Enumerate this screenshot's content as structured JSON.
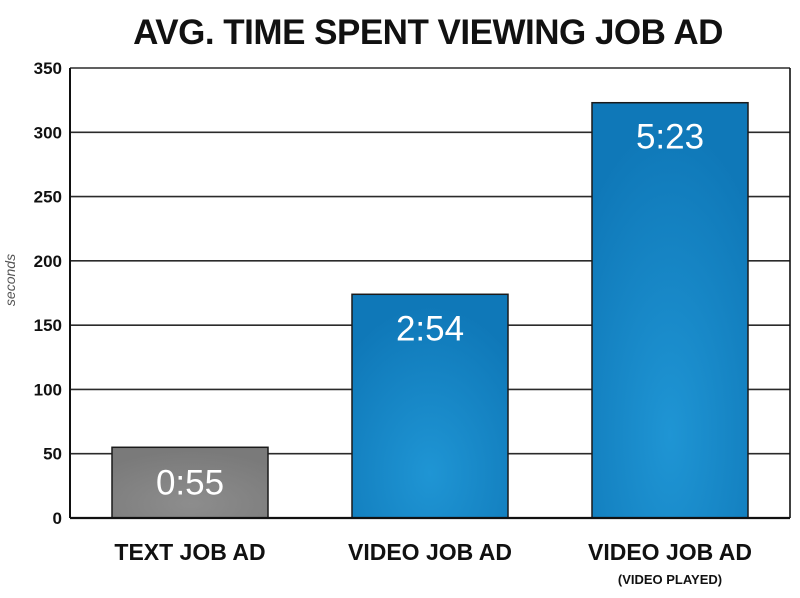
{
  "chart_data": {
    "type": "bar",
    "title": "AVG. TIME SPENT VIEWING JOB AD",
    "ylabel": "seconds",
    "xlabel": "",
    "ylim": [
      0,
      350
    ],
    "yticks": [
      0,
      50,
      100,
      150,
      200,
      250,
      300,
      350
    ],
    "grid": true,
    "categories": [
      {
        "label": "TEXT JOB AD",
        "sublabel": ""
      },
      {
        "label": "VIDEO JOB AD",
        "sublabel": ""
      },
      {
        "label": "VIDEO JOB AD",
        "sublabel": "(VIDEO PLAYED)"
      }
    ],
    "values": [
      55,
      174,
      323
    ],
    "data_labels": [
      "0:55",
      "2:54",
      "5:23"
    ],
    "colors": {
      "bars": [
        "#7a7a7a",
        "#0f78b8",
        "#0f78b8"
      ],
      "bar_highlight": [
        "#8d8d8d",
        "#1f95d4",
        "#1f95d4"
      ],
      "grid": "#2b2b2b",
      "axis": "#111111"
    }
  }
}
